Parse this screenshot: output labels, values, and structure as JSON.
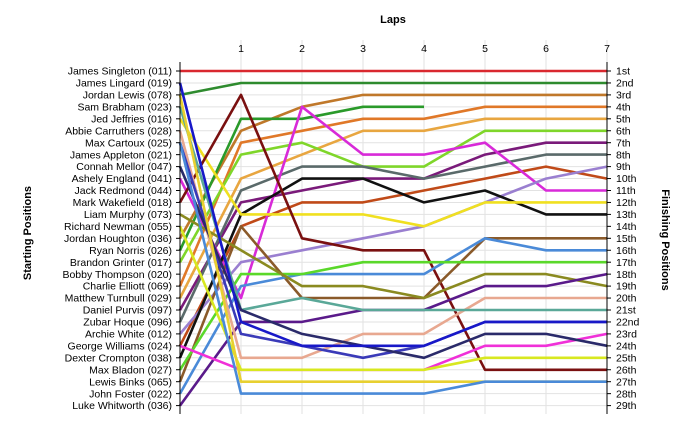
{
  "chart_data": {
    "type": "line",
    "title": "",
    "xlabel": "Laps",
    "ylabel_left": "Starting Positions",
    "ylabel_right": "Finishing Positions",
    "x": [
      0,
      1,
      2,
      3,
      4,
      5,
      6,
      7
    ],
    "x_ticks": [
      "1",
      "2",
      "3",
      "4",
      "5",
      "6",
      "7"
    ],
    "y_range": [
      1,
      29
    ],
    "grid": true,
    "starting_labels": [
      "James Singleton (011)",
      "James Lingard (019)",
      "Jordan Lewis (078)",
      "Sam Brabham (023)",
      "Jed Jeffries (016)",
      "Abbie Carruthers (028)",
      "Max Cartoux (025)",
      "James Appleton (021)",
      "Connah Mellor (047)",
      "Ashely England (041)",
      "Jack Redmond (044)",
      "Mark Wakefield (018)",
      "Liam Murphy (073)",
      "Richard Newman (055)",
      "Jordan Houghton (036)",
      "Ryan Norris (026)",
      "Brandon Grinter (017)",
      "Bobby Thompson (020)",
      "Charlie Elliott (069)",
      "Matthew Turnbull (029)",
      "Daniel Purvis (097)",
      "Zubar Hoque (096)",
      "Archie White (012)",
      "George Williams (024)",
      "Dexter Crompton (038)",
      "Max Bladon (027)",
      "Lewis Binks (065)",
      "John Foster (022)",
      "Luke Whitworth (036)"
    ],
    "finishing_labels": [
      "1st",
      "2nd",
      "3rd",
      "4th",
      "5th",
      "6th",
      "7th",
      "8th",
      "9th",
      "10th",
      "11th",
      "12th",
      "13th",
      "14th",
      "15th",
      "16th",
      "17th",
      "18th",
      "19th",
      "20th",
      "21st",
      "22nd",
      "23rd",
      "24th",
      "25th",
      "26th",
      "27th",
      "28th",
      "29th"
    ],
    "series": [
      {
        "color": "#d9282f",
        "values": [
          1,
          1,
          1,
          1,
          1,
          1,
          1,
          1
        ]
      },
      {
        "color": "#2e8b2e",
        "values": [
          3,
          2,
          2,
          2,
          2,
          2,
          2,
          2
        ]
      },
      {
        "color": "#c0782a",
        "values": [
          15,
          6,
          4,
          3,
          3,
          3,
          3,
          3
        ]
      },
      {
        "color": "#2a9a2a",
        "values": [
          16,
          5,
          5,
          4,
          4,
          null,
          null,
          null
        ]
      },
      {
        "color": "#e07828",
        "values": [
          19,
          7,
          6,
          5,
          5,
          4,
          4,
          4
        ]
      },
      {
        "color": "#e8a640",
        "values": [
          20,
          10,
          8,
          6,
          6,
          5,
          5,
          5
        ]
      },
      {
        "color": "#7fd62a",
        "values": [
          17,
          8,
          7,
          9,
          9,
          6,
          6,
          6
        ]
      },
      {
        "color": "#7a1a7a",
        "values": [
          21,
          12,
          11,
          10,
          10,
          8,
          7,
          7
        ]
      },
      {
        "color": "#5a6a6a",
        "values": [
          22,
          11,
          9,
          9,
          10,
          9,
          8,
          8
        ]
      },
      {
        "color": "#c04a18",
        "values": [
          24,
          14,
          12,
          12,
          11,
          10,
          9,
          10
        ]
      },
      {
        "color": "#d82ad8",
        "values": [
          10,
          20,
          4,
          8,
          8,
          7,
          11,
          11
        ]
      },
      {
        "color": "#9a7fd0",
        "values": [
          23,
          17,
          16,
          15,
          14,
          12,
          10,
          9
        ]
      },
      {
        "color": "#111111",
        "values": [
          25,
          13,
          10,
          10,
          12,
          11,
          13,
          13
        ]
      },
      {
        "color": "#f0e020",
        "values": [
          5,
          13,
          13,
          13,
          14,
          12,
          12,
          12
        ]
      },
      {
        "color": "#7a1010",
        "values": [
          12,
          3,
          15,
          16,
          16,
          26,
          26,
          26
        ]
      },
      {
        "color": "#8a5a2a",
        "values": [
          27,
          14,
          20,
          20,
          20,
          15,
          15,
          15
        ]
      },
      {
        "color": "#4a8ad8",
        "values": [
          28,
          19,
          18,
          18,
          18,
          15,
          16,
          16
        ]
      },
      {
        "color": "#5ad82a",
        "values": [
          26,
          18,
          18,
          17,
          17,
          17,
          17,
          17
        ]
      },
      {
        "color": "#8a8a20",
        "values": [
          13,
          16,
          19,
          19,
          20,
          18,
          18,
          19
        ]
      },
      {
        "color": "#5a1a8a",
        "values": [
          29,
          22,
          22,
          21,
          21,
          19,
          19,
          18
        ]
      },
      {
        "color": "#e8a890",
        "values": [
          6,
          25,
          25,
          23,
          23,
          20,
          20,
          20
        ]
      },
      {
        "color": "#5aa898",
        "values": [
          4,
          21,
          20,
          21,
          21,
          21,
          21,
          21
        ]
      },
      {
        "color": "#3a3ab8",
        "values": [
          7,
          23,
          24,
          25,
          24,
          22,
          22,
          22
        ]
      },
      {
        "color": "#f030d8",
        "values": [
          24,
          26,
          26,
          26,
          26,
          24,
          24,
          23
        ]
      },
      {
        "color": "#2a2a6a",
        "values": [
          9,
          21,
          23,
          24,
          25,
          23,
          23,
          24
        ]
      },
      {
        "color": "#d8e820",
        "values": [
          14,
          26,
          26,
          26,
          26,
          25,
          25,
          25
        ]
      },
      {
        "color": "#1818c8",
        "values": [
          2,
          22,
          24,
          24,
          24,
          22,
          22,
          22
        ]
      },
      {
        "color": "#e8d030",
        "values": [
          3,
          27,
          27,
          27,
          27,
          27,
          27,
          27
        ]
      },
      {
        "color": "#4a8ad8",
        "values": [
          7,
          28,
          28,
          28,
          28,
          27,
          27,
          27
        ]
      }
    ]
  }
}
